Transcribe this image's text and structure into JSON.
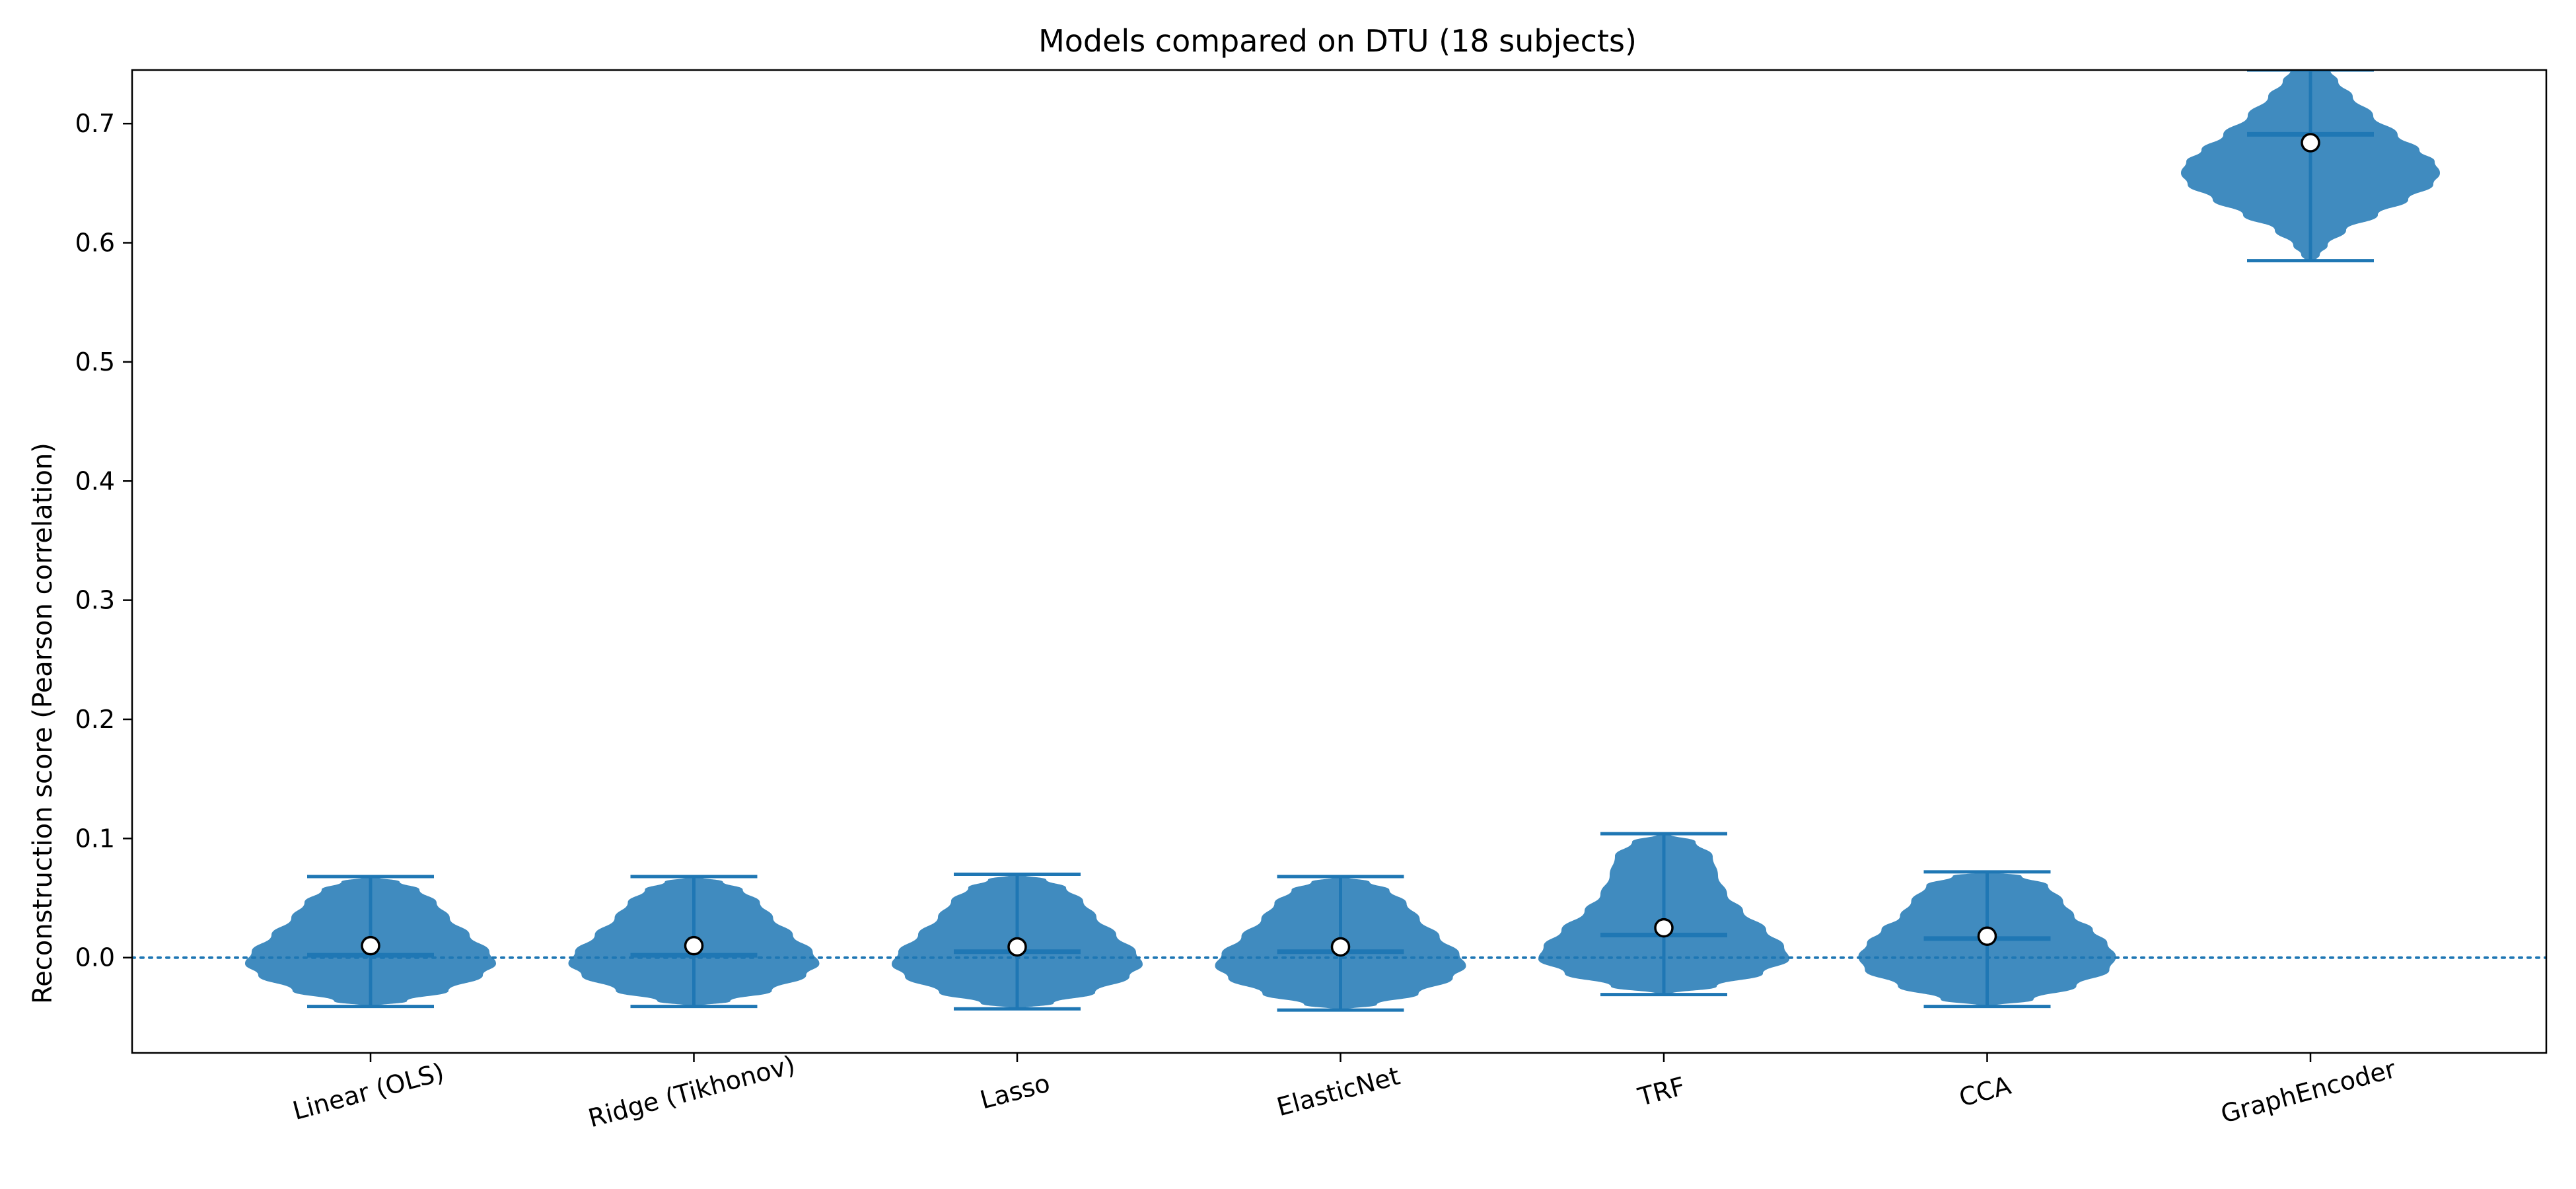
{
  "chart_data": {
    "type": "violin",
    "title": "Models compared on DTU (18 subjects)",
    "xlabel": "",
    "ylabel": "Reconstruction score (Pearson correlation)",
    "ylim": [
      -0.08,
      0.745
    ],
    "yticks": [
      0.0,
      0.1,
      0.2,
      0.3,
      0.4,
      0.5,
      0.6,
      0.7
    ],
    "ytick_labels": [
      "0.0",
      "0.1",
      "0.2",
      "0.3",
      "0.4",
      "0.5",
      "0.6",
      "0.7"
    ],
    "categories": [
      "Linear (OLS)",
      "Ridge (Tikhonov)",
      "Lasso",
      "ElasticNet",
      "TRF",
      "CCA",
      "GraphEncoder"
    ],
    "series": [
      {
        "category": "Linear (OLS)",
        "min": -0.041,
        "max": 0.068,
        "median": 0.002,
        "mean": 0.01
      },
      {
        "category": "Ridge (Tikhonov)",
        "min": -0.041,
        "max": 0.068,
        "median": 0.002,
        "mean": 0.01
      },
      {
        "category": "Lasso",
        "min": -0.043,
        "max": 0.07,
        "median": 0.005,
        "mean": 0.009
      },
      {
        "category": "ElasticNet",
        "min": -0.044,
        "max": 0.068,
        "median": 0.005,
        "mean": 0.009
      },
      {
        "category": "TRF",
        "min": -0.031,
        "max": 0.104,
        "median": 0.019,
        "mean": 0.025
      },
      {
        "category": "CCA",
        "min": -0.041,
        "max": 0.072,
        "median": 0.016,
        "mean": 0.018
      },
      {
        "category": "GraphEncoder",
        "min": 0.585,
        "max": 0.745,
        "median": 0.691,
        "mean": 0.684
      }
    ],
    "reference_line": {
      "y": 0.0,
      "style": "dotted"
    },
    "grid": false,
    "colors": {
      "violin": "#1f77b4",
      "mean_marker_fill": "#ffffff",
      "mean_marker_edge": "#000000"
    }
  }
}
